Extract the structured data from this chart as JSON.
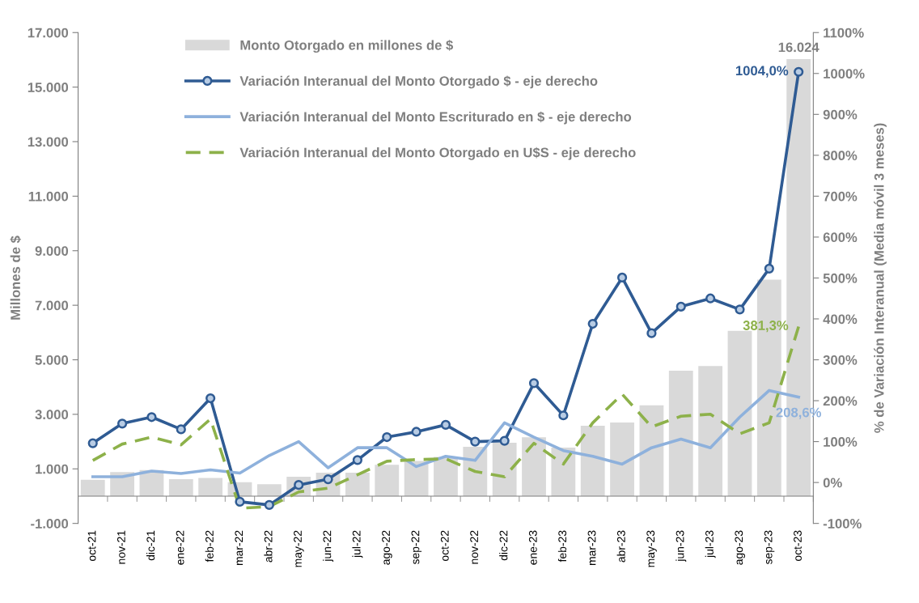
{
  "chart_data": {
    "type": "bar",
    "categories": [
      "oct-21",
      "nov-21",
      "dic-21",
      "ene-22",
      "feb-22",
      "mar-22",
      "abr-22",
      "may-22",
      "jun-22",
      "jul-22",
      "ago-22",
      "sep-22",
      "oct-22",
      "nov-22",
      "dic-22",
      "ene-23",
      "feb-23",
      "mar-23",
      "abr-23",
      "may-23",
      "jun-23",
      "jul-23",
      "ago-23",
      "sep-23",
      "oct-23"
    ],
    "ylabel": "Millones de $",
    "y2label": "% de Variación Interanual (Media móvil 3 meses)",
    "ylim": [
      -1000,
      17000
    ],
    "yticks": [
      {
        "value": -1000,
        "label": "-1.000"
      },
      {
        "value": 1000,
        "label": "1.000"
      },
      {
        "value": 3000,
        "label": "3.000"
      },
      {
        "value": 5000,
        "label": "5.000"
      },
      {
        "value": 7000,
        "label": "7.000"
      },
      {
        "value": 9000,
        "label": "9.000"
      },
      {
        "value": 11000,
        "label": "11.000"
      },
      {
        "value": 13000,
        "label": "13.000"
      },
      {
        "value": 15000,
        "label": "15.000"
      },
      {
        "value": 17000,
        "label": "17.000"
      }
    ],
    "y2lim": [
      -100,
      1100
    ],
    "y2ticks": [
      {
        "value": -100,
        "label": "-100%"
      },
      {
        "value": 0,
        "label": "0%"
      },
      {
        "value": 100,
        "label": "100%"
      },
      {
        "value": 200,
        "label": "200%"
      },
      {
        "value": 300,
        "label": "300%"
      },
      {
        "value": 400,
        "label": "400%"
      },
      {
        "value": 500,
        "label": "500%"
      },
      {
        "value": 600,
        "label": "600%"
      },
      {
        "value": 700,
        "label": "700%"
      },
      {
        "value": 800,
        "label": "800%"
      },
      {
        "value": 900,
        "label": "900%"
      },
      {
        "value": 1000,
        "label": "1000%"
      },
      {
        "value": 1100,
        "label": "1100%"
      }
    ],
    "grid": false,
    "legend": "top left",
    "series": [
      {
        "name": "Monto Otorgado en millones de $",
        "color": "#d9d9d9",
        "values": [
          600,
          880,
          960,
          620,
          670,
          510,
          440,
          710,
          860,
          860,
          1150,
          1290,
          1440,
          1810,
          1960,
          2160,
          1780,
          2580,
          2700,
          3330,
          4600,
          4770,
          6060,
          7940,
          16024
        ],
        "value_labels": [
          null,
          null,
          null,
          null,
          null,
          null,
          null,
          null,
          null,
          null,
          null,
          null,
          null,
          null,
          null,
          null,
          null,
          null,
          null,
          null,
          null,
          null,
          null,
          null,
          "16.024"
        ]
      },
      {
        "name": "Variación Interanual del Monto Otorgado $ - eje derecho",
        "type": "line",
        "axis": "y2",
        "color": "#2f5b93",
        "marker": "circle",
        "line_style": "solid",
        "values": [
          96,
          144,
          160,
          130,
          206,
          -47,
          -55,
          -6,
          8,
          55,
          111,
          124,
          141,
          100,
          102,
          243,
          164,
          388,
          501,
          365,
          430,
          450,
          423,
          523,
          1004.0
        ],
        "value_labels": [
          null,
          null,
          null,
          null,
          null,
          null,
          null,
          null,
          null,
          null,
          null,
          null,
          null,
          null,
          null,
          null,
          null,
          null,
          null,
          null,
          null,
          null,
          null,
          null,
          "1004,0%"
        ]
      },
      {
        "name": "Variación Interanual del Monto Escriturado en $ - eje derecho",
        "type": "line",
        "axis": "y2",
        "color": "#8eb1dc",
        "marker": "none",
        "line_style": "solid",
        "values": [
          14,
          14,
          28,
          22,
          31,
          23,
          66,
          100,
          36,
          85,
          85,
          39,
          64,
          54,
          146,
          111,
          78,
          64,
          45,
          85,
          106,
          85,
          160,
          225,
          208.6
        ],
        "value_labels": [
          null,
          null,
          null,
          null,
          null,
          null,
          null,
          null,
          null,
          null,
          null,
          null,
          null,
          null,
          null,
          null,
          null,
          null,
          null,
          null,
          null,
          null,
          null,
          null,
          "208,6%"
        ]
      },
      {
        "name": "Variación Interanual del Monto Otorgado en U$S - eje derecho",
        "type": "line",
        "axis": "y2",
        "color": "#8db14a",
        "marker": "none",
        "line_style": "dashed",
        "values": [
          54,
          94,
          111,
          92,
          155,
          -63,
          -59,
          -23,
          -14,
          19,
          52,
          56,
          58,
          27,
          14,
          96,
          45,
          146,
          216,
          136,
          162,
          167,
          119,
          146,
          381.3
        ],
        "value_labels": [
          null,
          null,
          null,
          null,
          null,
          null,
          null,
          null,
          null,
          null,
          null,
          null,
          null,
          null,
          null,
          null,
          null,
          null,
          null,
          null,
          null,
          null,
          null,
          null,
          "381,3%"
        ]
      }
    ]
  }
}
